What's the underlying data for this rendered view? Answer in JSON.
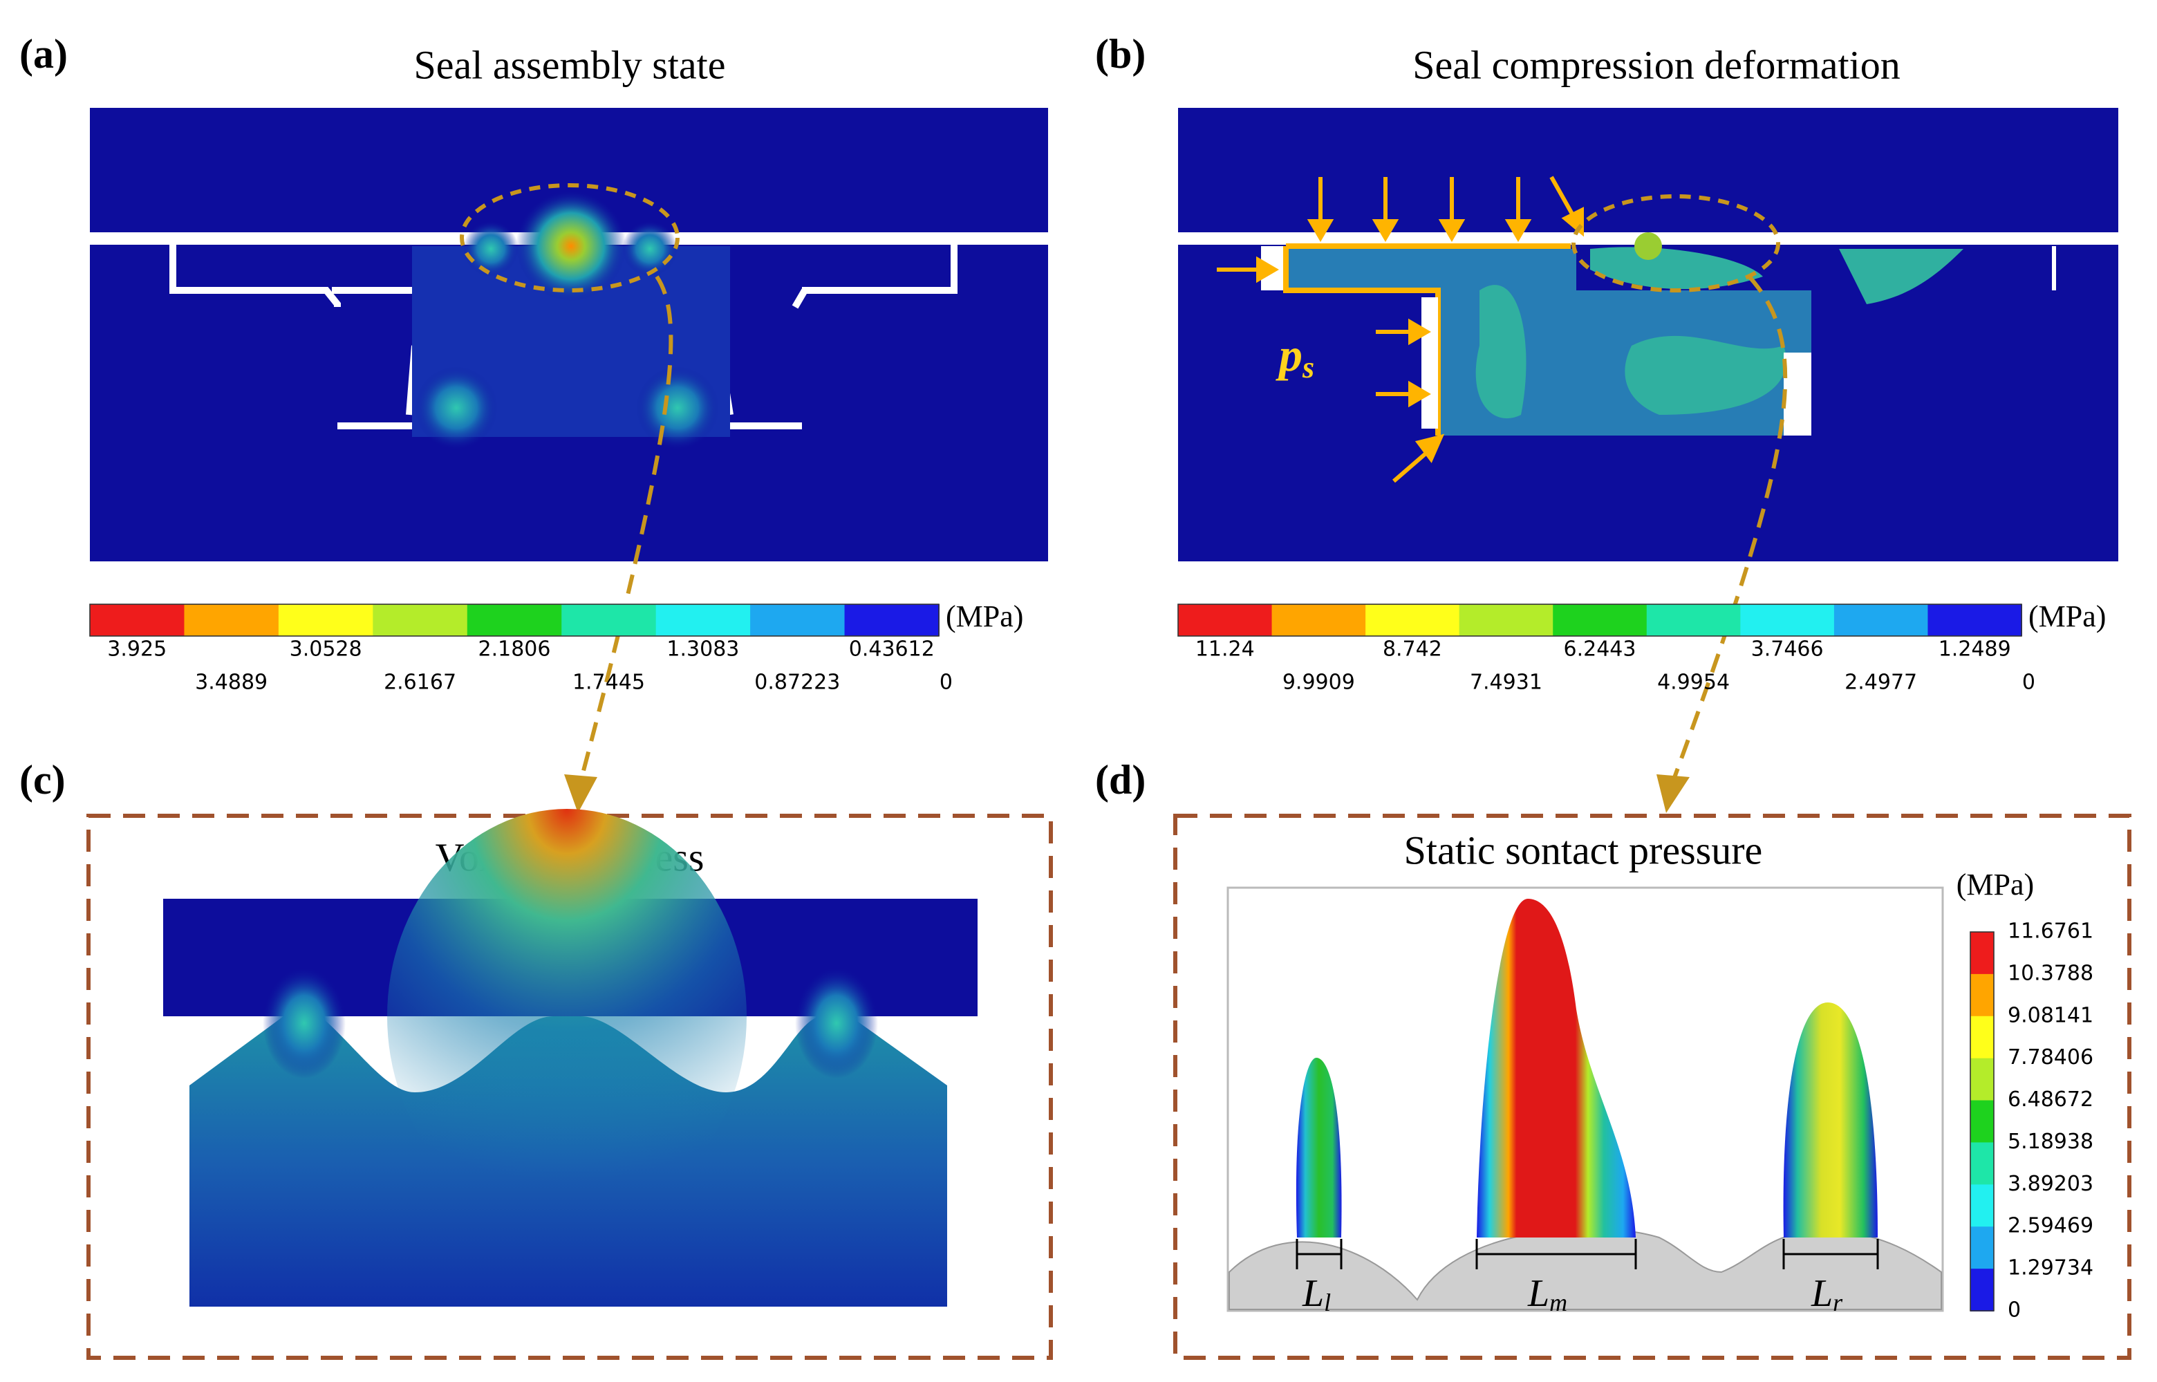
{
  "panels": [
    {
      "label": "(a)",
      "title": "Seal assembly state",
      "colorbar": {
        "unit": "(MPa)",
        "colors": [
          "#ee1c1c",
          "#ffa500",
          "#ffff1a",
          "#b4ec2a",
          "#1ed21e",
          "#1ee6a8",
          "#22f0f0",
          "#1ea8f0",
          "#1a1ae6"
        ],
        "ticks": [
          3.925,
          3.4889,
          3.0528,
          2.6167,
          2.1806,
          1.7445,
          1.3083,
          0.87223,
          0.43612,
          0
        ]
      }
    },
    {
      "label": "(b)",
      "title": "Seal compression deformation",
      "annotation": {
        "main": "p",
        "sub": "s"
      },
      "colorbar": {
        "unit": "(MPa)",
        "colors": [
          "#ee1c1c",
          "#ffa500",
          "#ffff1a",
          "#b4ec2a",
          "#1ed21e",
          "#1ee6a8",
          "#22f0f0",
          "#1ea8f0",
          "#1a1ae6"
        ],
        "ticks": [
          11.24,
          9.9909,
          8.742,
          7.4931,
          6.2443,
          4.9954,
          3.7466,
          2.4977,
          1.2489,
          0
        ]
      }
    },
    {
      "label": "(c)",
      "title": "Von Mises stress"
    },
    {
      "label": "(d)",
      "title": "Static sontact pressure",
      "colorbar": {
        "unit": "(MPa)",
        "colors": [
          "#ee1c1c",
          "#ffa500",
          "#ffff1a",
          "#b4ec2a",
          "#1ed21e",
          "#1ee6a8",
          "#22f0f0",
          "#1ea8f0",
          "#1a1ae6"
        ],
        "ticks": [
          11.6761,
          10.3788,
          9.08141,
          7.78406,
          6.48672,
          5.18938,
          3.89203,
          2.59469,
          1.29734,
          0
        ]
      },
      "annotations": [
        {
          "main": "L",
          "sub": "l"
        },
        {
          "main": "L",
          "sub": "m"
        },
        {
          "main": "L",
          "sub": "r"
        }
      ]
    }
  ]
}
